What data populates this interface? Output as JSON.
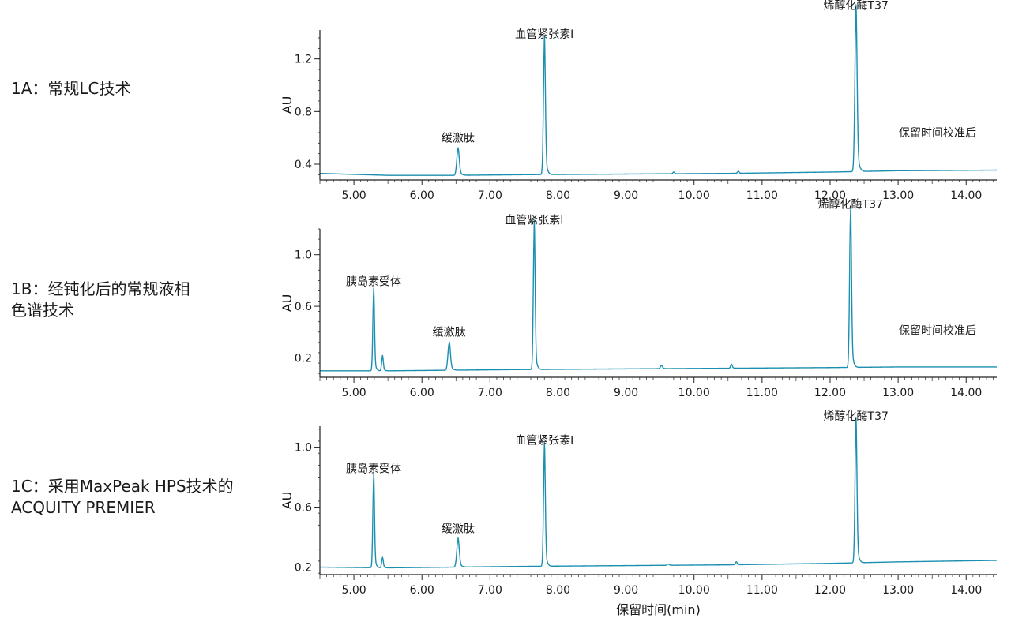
{
  "panel_labels": [
    "1A：常规LC技术",
    "1B：经钝化后的常规液相\n色谱技术",
    "1C：采用MaxPeak HPS技术的\nACQUITY PREMIER"
  ],
  "colors": {
    "trace": "#1a8fb0",
    "axis": "#222222"
  },
  "chart_data": [
    {
      "type": "line",
      "panel": "1A",
      "ylabel": "AU",
      "xlim": [
        4.5,
        14.45
      ],
      "ylim": [
        0.28,
        1.42
      ],
      "yticks": [
        0.4,
        0.8,
        1.2
      ],
      "xticks": [
        5,
        6,
        7,
        8,
        9,
        10,
        11,
        12,
        13,
        14
      ],
      "xtick_labels": [
        "5.00",
        "6.00",
        "7.00",
        "8.00",
        "9.00",
        "10.00",
        "11.00",
        "12.00",
        "13.00",
        "14.00"
      ],
      "baseline": [
        [
          4.5,
          0.33
        ],
        [
          5.5,
          0.315
        ],
        [
          6.5,
          0.315
        ],
        [
          7.5,
          0.32
        ],
        [
          9.0,
          0.325
        ],
        [
          10.5,
          0.33
        ],
        [
          12.0,
          0.34
        ],
        [
          13.0,
          0.35
        ],
        [
          14.45,
          0.355
        ]
      ],
      "peaks": [
        {
          "rt": 6.53,
          "height": 0.51,
          "width": 0.018,
          "label": "缓激肽"
        },
        {
          "rt": 7.8,
          "height": 1.3,
          "width": 0.014,
          "label": "血管紧张素I"
        },
        {
          "rt": 9.7,
          "height": 0.34,
          "width": 0.012,
          "label": ""
        },
        {
          "rt": 10.65,
          "height": 0.345,
          "width": 0.012,
          "label": ""
        },
        {
          "rt": 12.38,
          "height": 1.52,
          "width": 0.016,
          "label": "烯醇化酶T37"
        }
      ],
      "annotation": "保留时间校准后"
    },
    {
      "type": "line",
      "panel": "1B",
      "ylabel": "AU",
      "xlim": [
        4.5,
        14.45
      ],
      "ylim": [
        0.05,
        1.2
      ],
      "yticks": [
        0.2,
        0.6,
        1.0
      ],
      "xticks": [
        5,
        6,
        7,
        8,
        9,
        10,
        11,
        12,
        13,
        14
      ],
      "xtick_labels": [
        "5.00",
        "6.00",
        "7.00",
        "8.00",
        "9.00",
        "10.00",
        "11.00",
        "12.00",
        "13.00",
        "14.00"
      ],
      "baseline": [
        [
          4.5,
          0.1
        ],
        [
          5.5,
          0.1
        ],
        [
          6.5,
          0.105
        ],
        [
          7.5,
          0.11
        ],
        [
          9.0,
          0.115
        ],
        [
          10.5,
          0.12
        ],
        [
          12.0,
          0.125
        ],
        [
          13.0,
          0.13
        ],
        [
          14.45,
          0.13
        ]
      ],
      "peaks": [
        {
          "rt": 5.29,
          "height": 0.7,
          "width": 0.012,
          "label": "胰岛素受体"
        },
        {
          "rt": 5.42,
          "height": 0.21,
          "width": 0.012,
          "label": ""
        },
        {
          "rt": 6.4,
          "height": 0.31,
          "width": 0.018,
          "label": "缓激肽"
        },
        {
          "rt": 7.65,
          "height": 1.18,
          "width": 0.013,
          "label": "血管紧张素I"
        },
        {
          "rt": 9.52,
          "height": 0.14,
          "width": 0.015,
          "label": ""
        },
        {
          "rt": 10.55,
          "height": 0.15,
          "width": 0.012,
          "label": ""
        },
        {
          "rt": 12.3,
          "height": 1.3,
          "width": 0.014,
          "label": "烯醇化酶T37"
        }
      ],
      "annotation": "保留时间校准后"
    },
    {
      "type": "line",
      "panel": "1C",
      "ylabel": "AU",
      "xlim": [
        4.5,
        14.45
      ],
      "ylim": [
        0.15,
        1.14
      ],
      "yticks": [
        0.2,
        0.6,
        1.0
      ],
      "xticks": [
        5,
        6,
        7,
        8,
        9,
        10,
        11,
        12,
        13,
        14
      ],
      "xtick_labels": [
        "5.00",
        "6.00",
        "7.00",
        "8.00",
        "9.00",
        "10.00",
        "11.00",
        "12.00",
        "13.00",
        "14.00"
      ],
      "xlabel": "保留时间(min)",
      "baseline": [
        [
          4.5,
          0.2
        ],
        [
          5.5,
          0.195
        ],
        [
          6.5,
          0.2
        ],
        [
          7.5,
          0.205
        ],
        [
          9.0,
          0.21
        ],
        [
          10.5,
          0.215
        ],
        [
          12.0,
          0.225
        ],
        [
          13.0,
          0.235
        ],
        [
          14.45,
          0.245
        ]
      ],
      "peaks": [
        {
          "rt": 5.29,
          "height": 0.78,
          "width": 0.012,
          "label": "胰岛素受体"
        },
        {
          "rt": 5.42,
          "height": 0.26,
          "width": 0.012,
          "label": ""
        },
        {
          "rt": 6.53,
          "height": 0.38,
          "width": 0.018,
          "label": "缓激肽"
        },
        {
          "rt": 7.8,
          "height": 0.97,
          "width": 0.013,
          "label": "血管紧张素I"
        },
        {
          "rt": 9.62,
          "height": 0.22,
          "width": 0.015,
          "label": ""
        },
        {
          "rt": 10.62,
          "height": 0.235,
          "width": 0.012,
          "label": ""
        },
        {
          "rt": 12.38,
          "height": 1.13,
          "width": 0.014,
          "label": "烯醇化酶T37"
        }
      ],
      "annotation": ""
    }
  ]
}
